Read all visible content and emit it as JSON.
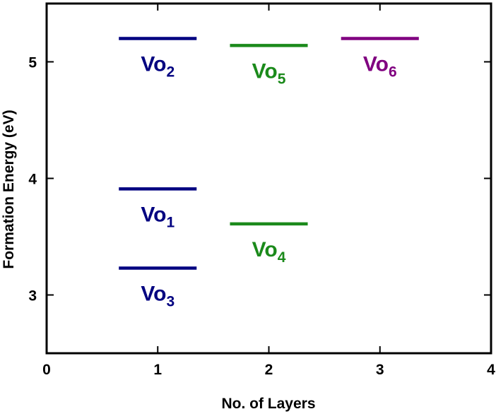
{
  "chart_data": {
    "type": "level-diagram",
    "title": "",
    "xlabel": "No. of Layers",
    "ylabel": "Formation Energy (eV)",
    "xlim": [
      0,
      4
    ],
    "ylim": [
      2.5,
      5.5
    ],
    "xticks": [
      0,
      1,
      2,
      3,
      4
    ],
    "yticks": [
      3,
      4,
      5
    ],
    "grid": false,
    "levels": [
      {
        "id": "vo1",
        "layer": 1,
        "energy": 3.91,
        "label": "Vo",
        "sub": "1",
        "color": "#000080"
      },
      {
        "id": "vo2",
        "layer": 1,
        "energy": 5.2,
        "label": "Vo",
        "sub": "2",
        "color": "#000080"
      },
      {
        "id": "vo3",
        "layer": 1,
        "energy": 3.23,
        "label": "Vo",
        "sub": "3",
        "color": "#000080"
      },
      {
        "id": "vo4",
        "layer": 2,
        "energy": 3.61,
        "label": "Vo",
        "sub": "4",
        "color": "#1b8a1b"
      },
      {
        "id": "vo5",
        "layer": 2,
        "energy": 5.14,
        "label": "Vo",
        "sub": "5",
        "color": "#1b8a1b"
      },
      {
        "id": "vo6",
        "layer": 3,
        "energy": 5.2,
        "label": "Vo",
        "sub": "6",
        "color": "#800080"
      }
    ]
  }
}
